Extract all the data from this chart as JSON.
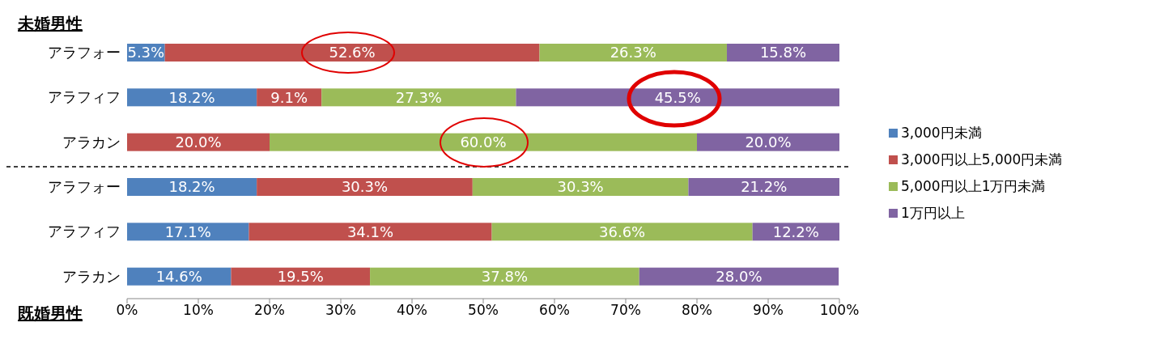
{
  "chart_data": {
    "type": "bar",
    "orientation": "horizontal",
    "stacked": true,
    "categories": [
      "アラフォー",
      "アラフィフ",
      "アラカン",
      "アラフォー",
      "アラフィフ",
      "アラカン"
    ],
    "series": [
      {
        "name": "3,000円未満",
        "color": "#4f81bd",
        "values": [
          5.3,
          18.2,
          0,
          18.2,
          17.1,
          14.6
        ],
        "value_labels": [
          "5.3%",
          "18.2%",
          null,
          "18.2%",
          "17.1%",
          "14.6%"
        ]
      },
      {
        "name": "3,000円以上5,000円未満",
        "color": "#c0504d",
        "values": [
          52.6,
          9.1,
          20.0,
          30.3,
          34.1,
          19.5
        ],
        "value_labels": [
          "52.6%",
          "9.1%",
          "20.0%",
          "30.3%",
          "34.1%",
          "19.5%"
        ]
      },
      {
        "name": "5,000円以上1万円未満",
        "color": "#9bbb59",
        "values": [
          26.3,
          27.3,
          60.0,
          30.3,
          36.6,
          37.8
        ],
        "value_labels": [
          "26.3%",
          "27.3%",
          "60.0%",
          "30.3%",
          "36.6%",
          "37.8%"
        ]
      },
      {
        "name": "1万円以上",
        "color": "#8064a2",
        "values": [
          15.8,
          45.5,
          20.0,
          21.2,
          12.2,
          28.0
        ],
        "value_labels": [
          "15.8%",
          "45.5%",
          "20.0%",
          "21.2%",
          "12.2%",
          "28.0%"
        ]
      }
    ],
    "xlim": [
      0,
      100
    ],
    "xticks": [
      {
        "value": 0,
        "label": "0%"
      },
      {
        "value": 10,
        "label": "10%"
      },
      {
        "value": 20,
        "label": "20%"
      },
      {
        "value": 30,
        "label": "30%"
      },
      {
        "value": 40,
        "label": "40%"
      },
      {
        "value": 50,
        "label": "50%"
      },
      {
        "value": 60,
        "label": "60%"
      },
      {
        "value": 70,
        "label": "70%"
      },
      {
        "value": 80,
        "label": "80%"
      },
      {
        "value": 90,
        "label": "90%"
      },
      {
        "value": 100,
        "label": "100%"
      }
    ],
    "legend": "right",
    "annotations": [
      "未婚男性",
      "既婚男性"
    ]
  }
}
